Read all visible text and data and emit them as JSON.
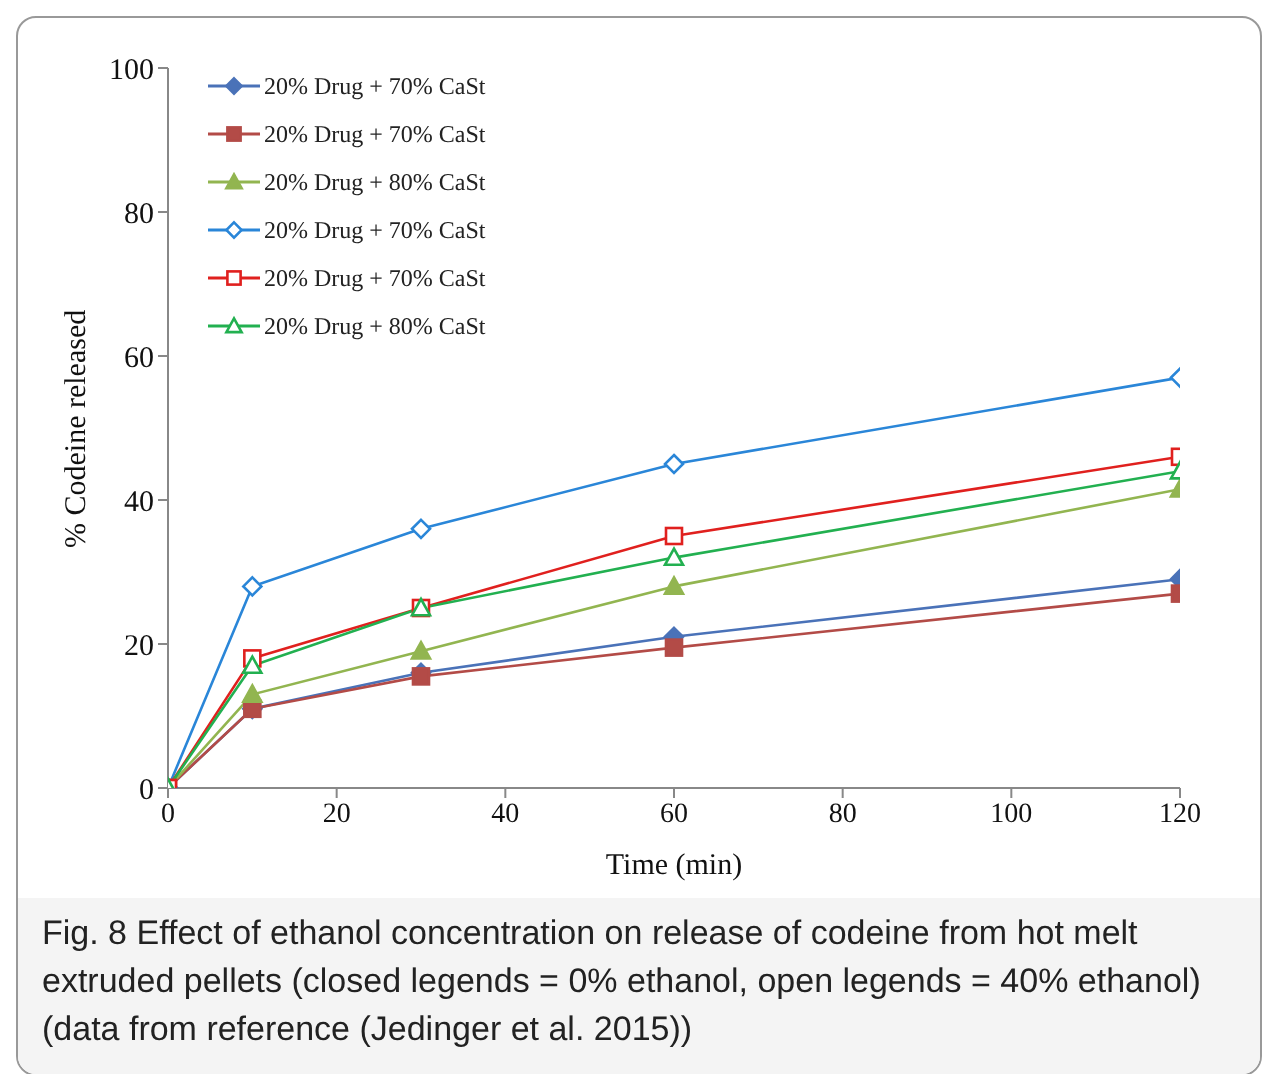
{
  "chart_data": {
    "type": "line",
    "xlabel": "Time (min)",
    "ylabel": "% Codeine released",
    "x": [
      0,
      10,
      30,
      60,
      120
    ],
    "series": [
      {
        "name": "20% Drug + 70% CaSt",
        "color": "#4a72b8",
        "values": [
          0,
          11,
          16,
          21,
          29
        ],
        "marker": "diamond"
      },
      {
        "name": "20% Drug + 70% CaSt",
        "color": "#b34b47",
        "values": [
          0,
          11,
          15.5,
          19.5,
          27
        ],
        "marker": "square"
      },
      {
        "name": "20% Drug + 80% CaSt",
        "color": "#92b550",
        "values": [
          0,
          13,
          19,
          28,
          41.5
        ],
        "marker": "triangle"
      },
      {
        "name": "20% Drug + 70% CaSt",
        "color": "#2a86d8",
        "values": [
          0,
          28,
          36,
          45,
          57
        ],
        "marker": "diamond-open"
      },
      {
        "name": "20% Drug + 70% CaSt",
        "color": "#e0201e",
        "values": [
          0,
          18,
          25,
          35,
          46
        ],
        "marker": "square-open"
      },
      {
        "name": "20% Drug + 80% CaSt",
        "color": "#22b050",
        "values": [
          0,
          17,
          25,
          32,
          44
        ],
        "marker": "triangle-open"
      }
    ],
    "xlim": [
      0,
      120
    ],
    "xticks": [
      0,
      20,
      40,
      60,
      80,
      100,
      120
    ],
    "ylim": [
      0,
      100
    ],
    "yticks": [
      0,
      20,
      40,
      60,
      80,
      100
    ],
    "grid": false,
    "legend": "top left",
    "line_style": "solid",
    "annotations": [
      "Fig. 8 Effect of ethanol concentration on release of codeine from hot melt extruded pellets (closed legends = 0% ethanol, open legends = 40% ethanol) (data from reference (Jedinger et al. 2015))"
    ]
  }
}
